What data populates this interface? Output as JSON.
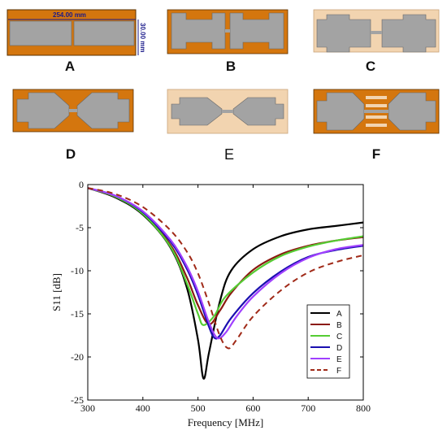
{
  "panels": {
    "dimension_width": "254.00 mm",
    "dimension_height": "30.00 mm",
    "labels": [
      "A",
      "B",
      "C",
      "D",
      "E",
      "F"
    ]
  },
  "colors": {
    "copper": "#d4760e",
    "copper_light": "#f2d4b0",
    "metal_gray": "#a3a3a3",
    "dimension_line": "#1a1a8a"
  },
  "chart_data": {
    "type": "line",
    "xlabel": "Frequency [MHz]",
    "ylabel": "S11 [dB]",
    "xlim": [
      300,
      800
    ],
    "ylim": [
      -25,
      0
    ],
    "xticks": [
      300,
      400,
      500,
      600,
      700,
      800
    ],
    "yticks": [
      0,
      -5,
      -10,
      -15,
      -20,
      -25
    ],
    "grid": false,
    "legend_position": "lower-right",
    "series": [
      {
        "name": "A",
        "color": "#000000",
        "dash": "solid",
        "x": [
          300,
          350,
          400,
          450,
          480,
          500,
          510,
          520,
          540,
          560,
          600,
          650,
          700,
          750,
          800
        ],
        "y": [
          -0.4,
          -1.5,
          -3.5,
          -7.3,
          -12.0,
          -18.0,
          -22.5,
          -19.5,
          -13.5,
          -10.0,
          -7.5,
          -6.0,
          -5.2,
          -4.8,
          -4.4
        ]
      },
      {
        "name": "B",
        "color": "#8b1a10",
        "dash": "solid",
        "x": [
          300,
          350,
          400,
          450,
          480,
          500,
          520,
          540,
          560,
          600,
          650,
          700,
          750,
          800
        ],
        "y": [
          -0.4,
          -1.4,
          -3.3,
          -7.0,
          -10.8,
          -14.0,
          -16.2,
          -14.6,
          -12.6,
          -9.9,
          -8.1,
          -7.1,
          -6.5,
          -6.1
        ]
      },
      {
        "name": "C",
        "color": "#55cc33",
        "dash": "solid",
        "x": [
          300,
          350,
          400,
          450,
          480,
          500,
          510,
          530,
          550,
          600,
          650,
          700,
          750,
          800
        ],
        "y": [
          -0.4,
          -1.4,
          -3.4,
          -7.2,
          -11.5,
          -15.0,
          -16.3,
          -15.2,
          -13.0,
          -10.2,
          -8.3,
          -7.2,
          -6.5,
          -6.0
        ]
      },
      {
        "name": "D",
        "color": "#1a0fb0",
        "dash": "solid",
        "x": [
          300,
          350,
          400,
          450,
          480,
          500,
          520,
          530,
          540,
          560,
          600,
          650,
          700,
          750,
          800
        ],
        "y": [
          -0.4,
          -1.3,
          -3.2,
          -6.6,
          -9.8,
          -12.8,
          -16.5,
          -17.8,
          -17.5,
          -15.5,
          -12.6,
          -10.1,
          -8.4,
          -7.6,
          -7.1
        ]
      },
      {
        "name": "E",
        "color": "#a040ff",
        "dash": "solid",
        "x": [
          300,
          350,
          400,
          450,
          480,
          500,
          520,
          535,
          550,
          570,
          600,
          650,
          700,
          750,
          800
        ],
        "y": [
          -0.4,
          -1.3,
          -3.1,
          -6.4,
          -9.5,
          -12.4,
          -16.0,
          -17.8,
          -17.2,
          -15.3,
          -13.0,
          -10.3,
          -8.5,
          -7.5,
          -7.0
        ]
      },
      {
        "name": "F",
        "color": "#a02a18",
        "dash": "dashed",
        "x": [
          300,
          350,
          400,
          450,
          480,
          500,
          520,
          540,
          555,
          570,
          600,
          650,
          700,
          750,
          800
        ],
        "y": [
          -0.4,
          -1.1,
          -2.6,
          -5.3,
          -7.8,
          -10.3,
          -13.8,
          -17.6,
          -19.0,
          -18.0,
          -15.3,
          -12.3,
          -10.2,
          -9.0,
          -8.2
        ]
      }
    ]
  }
}
